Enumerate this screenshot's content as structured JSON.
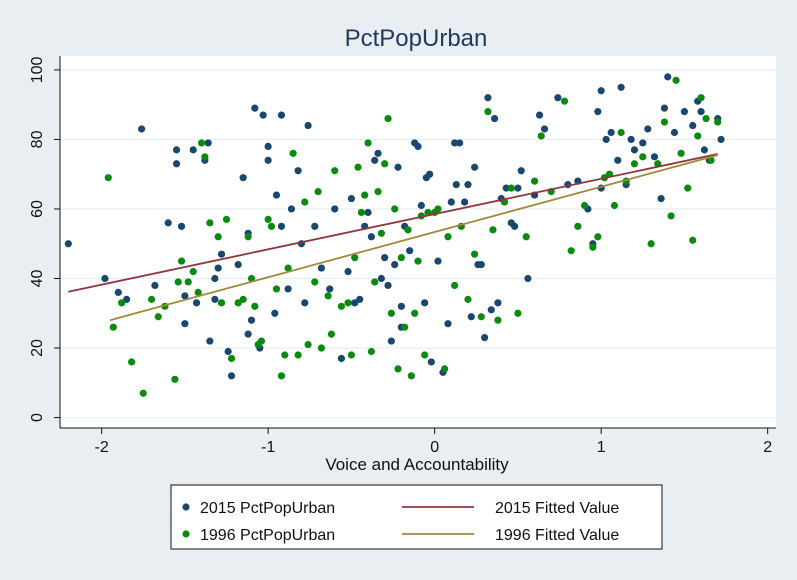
{
  "chart_data": {
    "type": "scatter",
    "title": "PctPopUrban",
    "xlabel": "Voice and Accountability",
    "ylabel": "",
    "xlim": [
      -2.25,
      2.05
    ],
    "ylim": [
      -3,
      104
    ],
    "xticks": [
      -2,
      -1,
      0,
      1,
      2
    ],
    "yticks": [
      0,
      20,
      40,
      60,
      80,
      100
    ],
    "grid": true,
    "legend_position": "bottom",
    "colors": {
      "s2015": "#1a476f",
      "s1996": "#0b8a10",
      "f2015": "#90353b",
      "f1996": "#a08a3c",
      "plot_bg": "#ffffff",
      "outer_bg": "#e8eef2"
    },
    "series": [
      {
        "name": "2015 PctPopUrban",
        "kind": "scatter",
        "points": [
          [
            -2.2,
            50
          ],
          [
            -1.98,
            40
          ],
          [
            -1.9,
            36
          ],
          [
            -1.85,
            34
          ],
          [
            -1.76,
            83
          ],
          [
            -1.68,
            38
          ],
          [
            -1.6,
            56
          ],
          [
            -1.55,
            73
          ],
          [
            -1.55,
            77
          ],
          [
            -1.52,
            55
          ],
          [
            -1.5,
            27
          ],
          [
            -1.5,
            35
          ],
          [
            -1.45,
            77
          ],
          [
            -1.43,
            33
          ],
          [
            -1.38,
            74
          ],
          [
            -1.36,
            79
          ],
          [
            -1.35,
            22
          ],
          [
            -1.32,
            40
          ],
          [
            -1.32,
            34
          ],
          [
            -1.3,
            43
          ],
          [
            -1.28,
            47
          ],
          [
            -1.24,
            19
          ],
          [
            -1.22,
            12
          ],
          [
            -1.18,
            44
          ],
          [
            -1.15,
            69
          ],
          [
            -1.12,
            24
          ],
          [
            -1.12,
            53
          ],
          [
            -1.1,
            28
          ],
          [
            -1.08,
            89
          ],
          [
            -1.05,
            20
          ],
          [
            -1.03,
            87
          ],
          [
            -1.0,
            74
          ],
          [
            -1.0,
            78
          ],
          [
            -0.96,
            30
          ],
          [
            -0.95,
            64
          ],
          [
            -0.92,
            55
          ],
          [
            -0.92,
            87
          ],
          [
            -0.88,
            37
          ],
          [
            -0.86,
            60
          ],
          [
            -0.82,
            71
          ],
          [
            -0.8,
            50
          ],
          [
            -0.78,
            33
          ],
          [
            -0.76,
            84
          ],
          [
            -0.72,
            55
          ],
          [
            -0.68,
            43
          ],
          [
            -0.63,
            37
          ],
          [
            -0.6,
            60
          ],
          [
            -0.56,
            17
          ],
          [
            -0.52,
            42
          ],
          [
            -0.5,
            63
          ],
          [
            -0.48,
            33
          ],
          [
            -0.45,
            34
          ],
          [
            -0.42,
            55
          ],
          [
            -0.4,
            59
          ],
          [
            -0.38,
            52
          ],
          [
            -0.36,
            74
          ],
          [
            -0.34,
            76
          ],
          [
            -0.32,
            40
          ],
          [
            -0.3,
            46
          ],
          [
            -0.28,
            38
          ],
          [
            -0.26,
            22
          ],
          [
            -0.24,
            44
          ],
          [
            -0.22,
            72
          ],
          [
            -0.2,
            32
          ],
          [
            -0.2,
            26
          ],
          [
            -0.18,
            55
          ],
          [
            -0.15,
            48
          ],
          [
            -0.12,
            79
          ],
          [
            -0.1,
            78
          ],
          [
            -0.08,
            61
          ],
          [
            -0.06,
            33
          ],
          [
            -0.05,
            69
          ],
          [
            -0.03,
            70
          ],
          [
            -0.02,
            16
          ],
          [
            0.02,
            45
          ],
          [
            0.05,
            13
          ],
          [
            0.08,
            27
          ],
          [
            0.1,
            62
          ],
          [
            0.12,
            79
          ],
          [
            0.13,
            67
          ],
          [
            0.15,
            79
          ],
          [
            0.18,
            62
          ],
          [
            0.2,
            67
          ],
          [
            0.22,
            29
          ],
          [
            0.24,
            72
          ],
          [
            0.26,
            44
          ],
          [
            0.28,
            44
          ],
          [
            0.3,
            23
          ],
          [
            0.32,
            92
          ],
          [
            0.34,
            31
          ],
          [
            0.36,
            86
          ],
          [
            0.38,
            33
          ],
          [
            0.4,
            63
          ],
          [
            0.43,
            66
          ],
          [
            0.46,
            56
          ],
          [
            0.48,
            55
          ],
          [
            0.5,
            66
          ],
          [
            0.52,
            71
          ],
          [
            0.56,
            40
          ],
          [
            0.6,
            64
          ],
          [
            0.63,
            87
          ],
          [
            0.66,
            83
          ],
          [
            0.74,
            92
          ],
          [
            0.8,
            67
          ],
          [
            0.86,
            68
          ],
          [
            0.92,
            60
          ],
          [
            0.95,
            50
          ],
          [
            0.98,
            88
          ],
          [
            1.0,
            66
          ],
          [
            1.0,
            94
          ],
          [
            1.03,
            80
          ],
          [
            1.06,
            82
          ],
          [
            1.1,
            74
          ],
          [
            1.12,
            95
          ],
          [
            1.15,
            67
          ],
          [
            1.18,
            80
          ],
          [
            1.2,
            77
          ],
          [
            1.25,
            79
          ],
          [
            1.28,
            83
          ],
          [
            1.32,
            75
          ],
          [
            1.36,
            63
          ],
          [
            1.38,
            89
          ],
          [
            1.4,
            98
          ],
          [
            1.44,
            82
          ],
          [
            1.5,
            88
          ],
          [
            1.55,
            84
          ],
          [
            1.58,
            91
          ],
          [
            1.6,
            88
          ],
          [
            1.62,
            77
          ],
          [
            1.65,
            74
          ],
          [
            1.7,
            86
          ],
          [
            1.72,
            80
          ]
        ]
      },
      {
        "name": "1996 PctPopUrban",
        "kind": "scatter",
        "points": [
          [
            -1.96,
            69
          ],
          [
            -1.93,
            26
          ],
          [
            -1.88,
            33
          ],
          [
            -1.82,
            16
          ],
          [
            -1.75,
            7
          ],
          [
            -1.7,
            34
          ],
          [
            -1.66,
            29
          ],
          [
            -1.62,
            32
          ],
          [
            -1.56,
            11
          ],
          [
            -1.54,
            39
          ],
          [
            -1.52,
            45
          ],
          [
            -1.48,
            39
          ],
          [
            -1.45,
            42
          ],
          [
            -1.42,
            36
          ],
          [
            -1.4,
            79
          ],
          [
            -1.38,
            75
          ],
          [
            -1.35,
            56
          ],
          [
            -1.3,
            52
          ],
          [
            -1.28,
            33
          ],
          [
            -1.25,
            57
          ],
          [
            -1.22,
            17
          ],
          [
            -1.18,
            33
          ],
          [
            -1.15,
            34
          ],
          [
            -1.12,
            52
          ],
          [
            -1.1,
            40
          ],
          [
            -1.08,
            32
          ],
          [
            -1.06,
            21
          ],
          [
            -1.04,
            22
          ],
          [
            -1.0,
            57
          ],
          [
            -0.98,
            55
          ],
          [
            -0.95,
            37
          ],
          [
            -0.92,
            12
          ],
          [
            -0.9,
            18
          ],
          [
            -0.88,
            43
          ],
          [
            -0.85,
            76
          ],
          [
            -0.82,
            18
          ],
          [
            -0.78,
            62
          ],
          [
            -0.76,
            21
          ],
          [
            -0.72,
            39
          ],
          [
            -0.7,
            65
          ],
          [
            -0.68,
            20
          ],
          [
            -0.64,
            35
          ],
          [
            -0.62,
            24
          ],
          [
            -0.6,
            71
          ],
          [
            -0.56,
            32
          ],
          [
            -0.52,
            33
          ],
          [
            -0.5,
            18
          ],
          [
            -0.48,
            46
          ],
          [
            -0.46,
            72
          ],
          [
            -0.44,
            59
          ],
          [
            -0.42,
            64
          ],
          [
            -0.4,
            79
          ],
          [
            -0.38,
            19
          ],
          [
            -0.36,
            39
          ],
          [
            -0.34,
            65
          ],
          [
            -0.32,
            53
          ],
          [
            -0.3,
            73
          ],
          [
            -0.28,
            86
          ],
          [
            -0.26,
            30
          ],
          [
            -0.24,
            60
          ],
          [
            -0.22,
            14
          ],
          [
            -0.2,
            46
          ],
          [
            -0.18,
            26
          ],
          [
            -0.16,
            54
          ],
          [
            -0.14,
            12
          ],
          [
            -0.12,
            30
          ],
          [
            -0.1,
            45
          ],
          [
            -0.08,
            58
          ],
          [
            -0.06,
            18
          ],
          [
            -0.04,
            59
          ],
          [
            0.0,
            59
          ],
          [
            0.02,
            60
          ],
          [
            0.06,
            14
          ],
          [
            0.08,
            52
          ],
          [
            0.12,
            38
          ],
          [
            0.16,
            55
          ],
          [
            0.2,
            34
          ],
          [
            0.24,
            47
          ],
          [
            0.28,
            29
          ],
          [
            0.32,
            88
          ],
          [
            0.35,
            54
          ],
          [
            0.38,
            28
          ],
          [
            0.42,
            62
          ],
          [
            0.46,
            66
          ],
          [
            0.5,
            30
          ],
          [
            0.55,
            52
          ],
          [
            0.6,
            68
          ],
          [
            0.64,
            81
          ],
          [
            0.7,
            65
          ],
          [
            0.78,
            91
          ],
          [
            0.82,
            48
          ],
          [
            0.86,
            55
          ],
          [
            0.9,
            61
          ],
          [
            0.95,
            49
          ],
          [
            0.98,
            52
          ],
          [
            1.02,
            69
          ],
          [
            1.05,
            70
          ],
          [
            1.08,
            61
          ],
          [
            1.12,
            82
          ],
          [
            1.15,
            68
          ],
          [
            1.2,
            73
          ],
          [
            1.25,
            75
          ],
          [
            1.3,
            50
          ],
          [
            1.34,
            73
          ],
          [
            1.38,
            85
          ],
          [
            1.42,
            58
          ],
          [
            1.45,
            97
          ],
          [
            1.48,
            76
          ],
          [
            1.52,
            66
          ],
          [
            1.55,
            51
          ],
          [
            1.58,
            81
          ],
          [
            1.6,
            92
          ],
          [
            1.63,
            86
          ],
          [
            1.66,
            74
          ],
          [
            1.7,
            85
          ]
        ]
      },
      {
        "name": "2015 Fitted Value",
        "kind": "line",
        "x": [
          -2.2,
          1.7
        ],
        "y": [
          36.2,
          75.8
        ]
      },
      {
        "name": "1996 Fitted Value",
        "kind": "line",
        "x": [
          -1.95,
          1.7
        ],
        "y": [
          28.0,
          75.5
        ]
      }
    ]
  }
}
